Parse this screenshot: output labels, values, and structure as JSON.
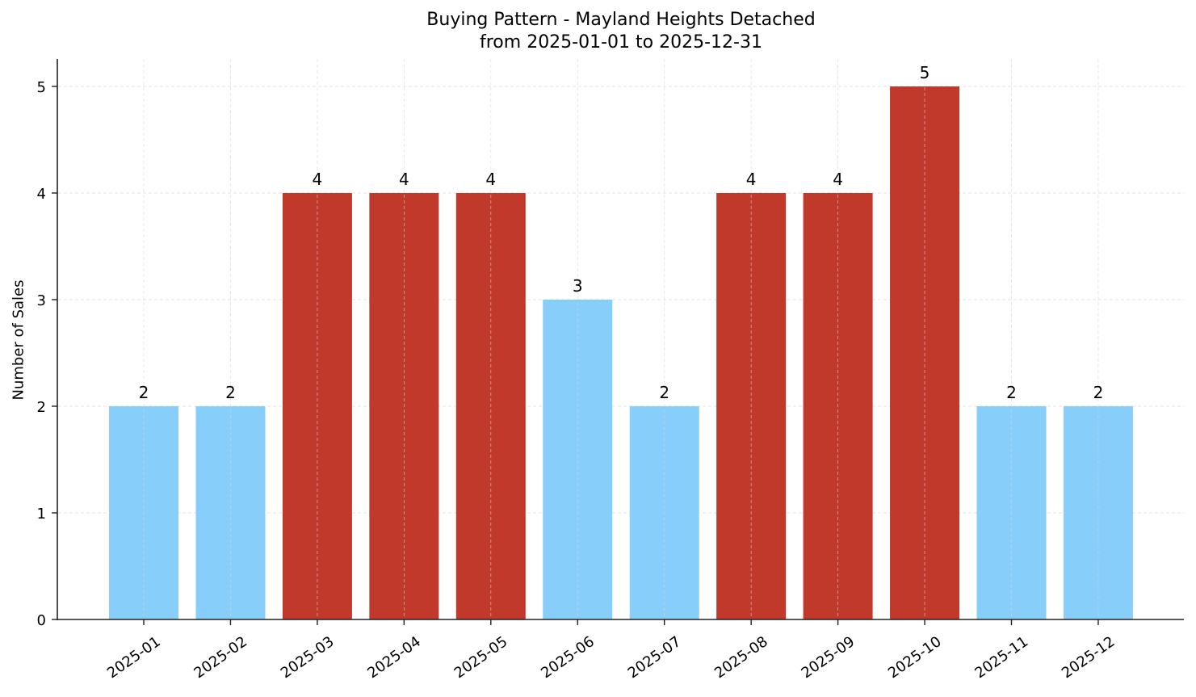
{
  "chart_data": {
    "type": "bar",
    "title": "Buying Pattern - Mayland Heights Detached",
    "subtitle": "from 2025-01-01 to 2025-12-31",
    "xlabel": "",
    "ylabel": "Number of Sales",
    "categories": [
      "2025-01",
      "2025-02",
      "2025-03",
      "2025-04",
      "2025-05",
      "2025-06",
      "2025-07",
      "2025-08",
      "2025-09",
      "2025-10",
      "2025-11",
      "2025-12"
    ],
    "values": [
      2,
      2,
      4,
      4,
      4,
      3,
      2,
      4,
      4,
      5,
      2,
      2
    ],
    "bar_colors": [
      "#87CEFA",
      "#87CEFA",
      "#C0392B",
      "#C0392B",
      "#C0392B",
      "#87CEFA",
      "#87CEFA",
      "#C0392B",
      "#C0392B",
      "#C0392B",
      "#87CEFA",
      "#87CEFA"
    ],
    "highlight_color": "#C0392B",
    "base_color": "#87CEFA",
    "yticks": [
      0,
      1,
      2,
      3,
      4,
      5
    ],
    "ylim": [
      0,
      5.25
    ],
    "grid": true,
    "data_labels": true
  }
}
